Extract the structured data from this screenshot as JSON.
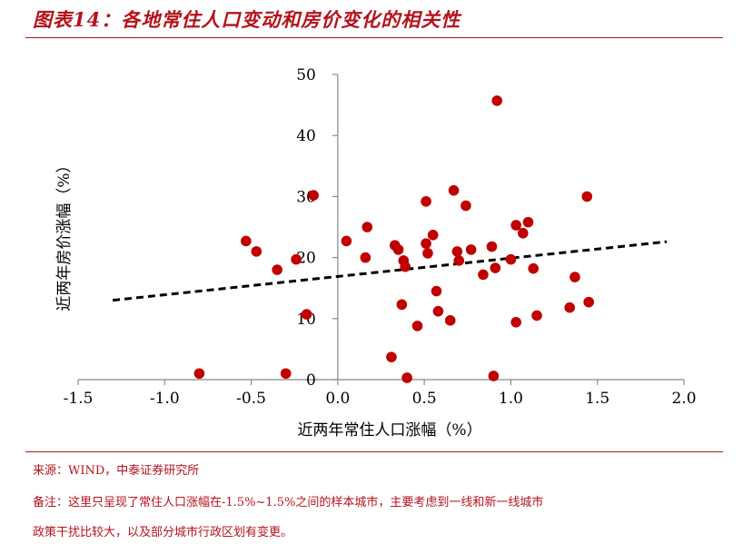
{
  "header": {
    "title": "图表14：各地常住人口变动和房价变化的相关性"
  },
  "chart_data": {
    "type": "scatter",
    "title": "",
    "xlabel": "近两年常住人口涨幅（%）",
    "ylabel": "近两年房价涨幅（%）",
    "xlim": [
      -1.5,
      2.0
    ],
    "ylim": [
      0,
      50
    ],
    "x_ticks": [
      "-1.5",
      "-1.0",
      "-0.5",
      "0.0",
      "0.5",
      "1.0",
      "1.5",
      "2.0"
    ],
    "y_ticks": [
      "0",
      "10",
      "20",
      "30",
      "40",
      "50"
    ],
    "grid": false,
    "legend": "none",
    "point_color": "#c00000",
    "trendline": {
      "style": "dashed",
      "color": "#000000",
      "x": [
        -1.3,
        1.9
      ],
      "y": [
        13.0,
        22.6
      ]
    },
    "series": [
      {
        "points": [
          [
            -0.8,
            1.0
          ],
          [
            -0.3,
            1.0
          ],
          [
            -0.53,
            22.7
          ],
          [
            -0.47,
            21.0
          ],
          [
            -0.35,
            18.0
          ],
          [
            -0.24,
            19.7
          ],
          [
            -0.18,
            10.7
          ],
          [
            -0.14,
            30.2
          ],
          [
            0.05,
            22.7
          ],
          [
            0.16,
            20.0
          ],
          [
            0.17,
            25.0
          ],
          [
            0.31,
            3.7
          ],
          [
            0.33,
            22.0
          ],
          [
            0.35,
            21.3
          ],
          [
            0.37,
            12.3
          ],
          [
            0.38,
            19.5
          ],
          [
            0.39,
            18.5
          ],
          [
            0.4,
            0.3
          ],
          [
            0.46,
            8.8
          ],
          [
            0.51,
            29.2
          ],
          [
            0.51,
            22.3
          ],
          [
            0.52,
            20.7
          ],
          [
            0.55,
            23.7
          ],
          [
            0.57,
            14.5
          ],
          [
            0.58,
            11.2
          ],
          [
            0.65,
            9.7
          ],
          [
            0.67,
            31.0
          ],
          [
            0.69,
            21.0
          ],
          [
            0.7,
            19.5
          ],
          [
            0.74,
            28.5
          ],
          [
            0.77,
            21.3
          ],
          [
            0.84,
            17.2
          ],
          [
            0.89,
            21.8
          ],
          [
            0.9,
            0.6
          ],
          [
            0.91,
            18.3
          ],
          [
            0.92,
            45.7
          ],
          [
            1.0,
            19.7
          ],
          [
            1.03,
            9.4
          ],
          [
            1.03,
            25.3
          ],
          [
            1.07,
            24.0
          ],
          [
            1.1,
            25.8
          ],
          [
            1.13,
            18.2
          ],
          [
            1.15,
            10.5
          ],
          [
            1.34,
            11.8
          ],
          [
            1.37,
            16.8
          ],
          [
            1.44,
            30.0
          ],
          [
            1.45,
            12.7
          ]
        ]
      }
    ]
  },
  "footer": {
    "source": "来源：WIND，中泰证券研究所",
    "note1": "备注：这里只呈现了常住人口涨幅在-1.5%~1.5%之间的样本城市，主要考虑到一线和新一线城市",
    "note2": "政策干扰比较大，以及部分城市行政区划有变更。"
  }
}
